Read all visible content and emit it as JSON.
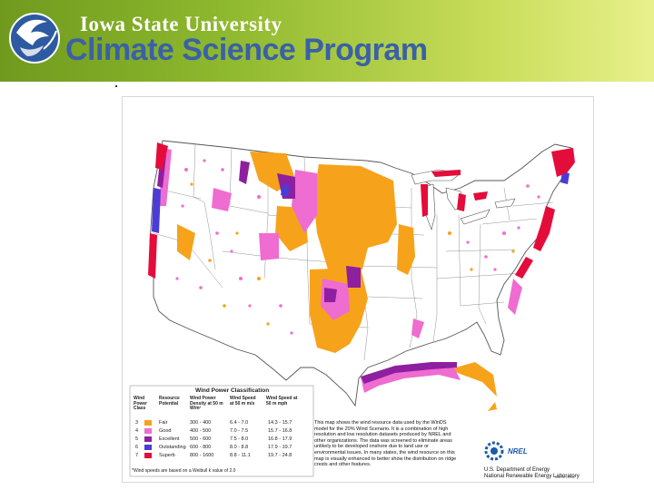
{
  "header": {
    "university": "Iowa State University",
    "program": "Climate Science Program"
  },
  "colors": {
    "fair": "#f7a21b",
    "good": "#ef6cd0",
    "excellent": "#8e1fa0",
    "outstanding": "#4b3bd7",
    "superb": "#e40c3a"
  },
  "legend": {
    "title": "Wind Power Classification",
    "col_class": "Wind Power Class",
    "col_resource": "Resource Potential",
    "col_density": "Wind Power Density at 50 m W/m²",
    "col_speed_ms": "Wind Speed at 50 m m/s",
    "col_speed_mph": "Wind Speed at 50 m mph",
    "rows": [
      {
        "cls": "3",
        "potential": "Fair",
        "density": "300 - 400",
        "ms": "6.4 - 7.0",
        "mph": "14.3 - 15.7"
      },
      {
        "cls": "4",
        "potential": "Good",
        "density": "400 - 500",
        "ms": "7.0 - 7.5",
        "mph": "15.7 - 16.8"
      },
      {
        "cls": "5",
        "potential": "Excellent",
        "density": "500 - 600",
        "ms": "7.5 - 8.0",
        "mph": "16.8 - 17.9"
      },
      {
        "cls": "6",
        "potential": "Outstanding",
        "density": "600 - 800",
        "ms": "8.0 - 8.8",
        "mph": "17.9 - 19.7"
      },
      {
        "cls": "7",
        "potential": "Superb",
        "density": "800 - 1600",
        "ms": "8.8 - 11.1",
        "mph": "19.7 - 24.8"
      }
    ],
    "footnote": "*Wind speeds are based on a Weibull k value of 2.0"
  },
  "description": "This map shows the wind resource data used by the WinDS model for the 20% Wind Scenario. It is a combination of high resolution and low resolution datasets produced by NREL and other organizations. The data was screened to eliminate areas unlikely to be developed onshore due to land use or environmental issues. In many states, the wind resource on this map is visually enhanced to better show the distribution on ridge crests and other features.",
  "credit": {
    "logo_text": "NREL",
    "line1": "U.S. Department of Energy",
    "line2": "National Renewable Energy Laboratory",
    "date": "MARCH 2008"
  }
}
